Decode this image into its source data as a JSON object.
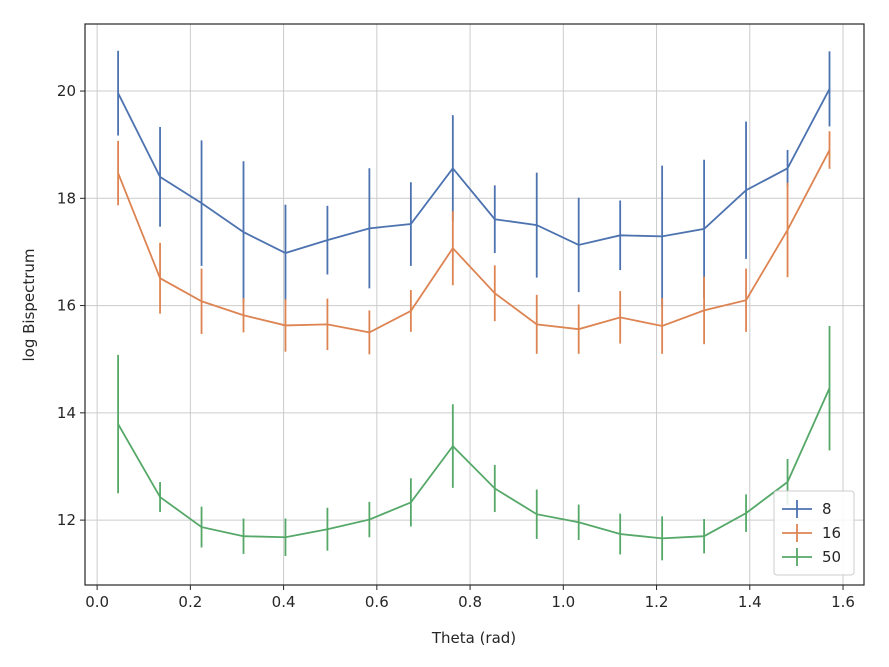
{
  "chart_data": {
    "type": "line",
    "xlabel": "Theta (rad)",
    "ylabel": "log Bispectrum",
    "x": [
      0.045,
      0.135,
      0.224,
      0.314,
      0.404,
      0.494,
      0.584,
      0.673,
      0.763,
      0.853,
      0.943,
      1.033,
      1.122,
      1.212,
      1.302,
      1.392,
      1.481,
      1.571
    ],
    "series": [
      {
        "name": "8",
        "color": "#4c72b0",
        "values": [
          19.96,
          18.4,
          17.91,
          17.37,
          16.98,
          17.22,
          17.44,
          17.52,
          18.56,
          17.61,
          17.5,
          17.13,
          17.31,
          17.29,
          17.43,
          18.15,
          18.56,
          20.04
        ],
        "errors": [
          0.79,
          0.93,
          1.17,
          1.32,
          0.9,
          0.64,
          1.12,
          0.78,
          0.99,
          0.63,
          0.98,
          0.88,
          0.65,
          1.32,
          1.29,
          1.28,
          0.34,
          0.7
        ]
      },
      {
        "name": "16",
        "color": "#dd8452",
        "values": [
          18.47,
          16.51,
          16.08,
          15.82,
          15.63,
          15.65,
          15.5,
          15.9,
          17.07,
          16.23,
          15.65,
          15.56,
          15.78,
          15.62,
          15.91,
          16.1,
          17.41,
          18.9
        ],
        "errors": [
          0.6,
          0.66,
          0.61,
          0.32,
          0.49,
          0.48,
          0.41,
          0.39,
          0.69,
          0.52,
          0.55,
          0.46,
          0.49,
          0.52,
          0.63,
          0.59,
          0.88,
          0.35
        ]
      },
      {
        "name": "50",
        "color": "#55a868",
        "values": [
          13.79,
          12.43,
          11.87,
          11.7,
          11.68,
          11.83,
          12.01,
          12.33,
          13.38,
          12.59,
          12.11,
          11.96,
          11.74,
          11.66,
          11.7,
          12.13,
          12.71,
          14.46
        ],
        "errors": [
          1.29,
          0.28,
          0.38,
          0.33,
          0.35,
          0.4,
          0.33,
          0.45,
          0.78,
          0.44,
          0.46,
          0.33,
          0.38,
          0.41,
          0.32,
          0.35,
          0.43,
          1.16
        ]
      }
    ],
    "xlim": [
      -0.026,
      1.645
    ],
    "ylim": [
      10.79,
      21.25
    ],
    "xticks": [
      {
        "value": 0,
        "label": "0.0"
      },
      0.2,
      0.4,
      0.6,
      0.8,
      {
        "value": 1,
        "label": "1.0"
      },
      1.2,
      1.4,
      1.6
    ],
    "yticks": [
      12,
      14,
      16,
      18,
      20
    ],
    "grid": true,
    "legend": "lower right"
  }
}
